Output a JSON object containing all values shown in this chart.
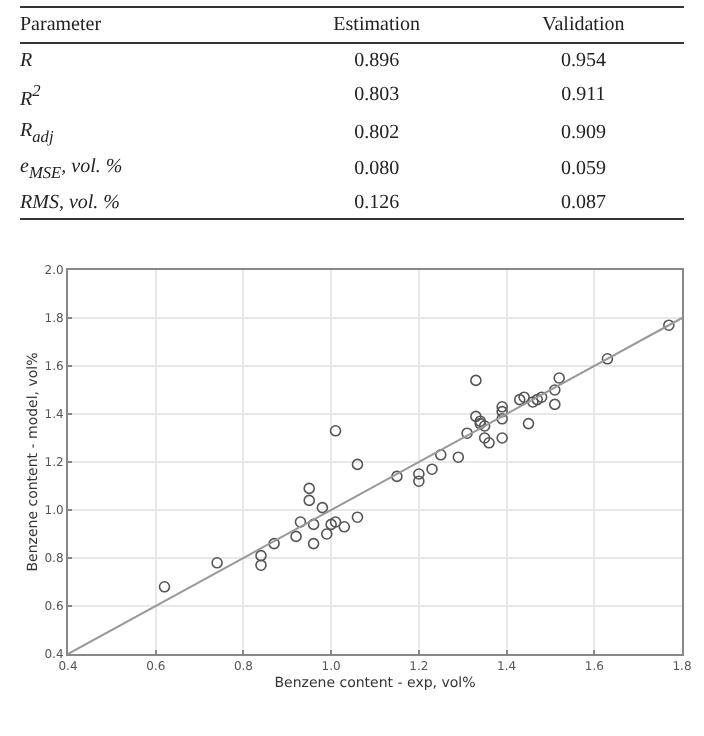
{
  "chart_data": [
    {
      "type": "other",
      "xlabel": "Parameter",
      "categories": [
        "R",
        "R$^{2}$",
        "R$_{adj}$",
        "e$_{MSE}$, vol. %",
        "RMS, vol. %"
      ],
      "series": [
        {
          "name": "Estimation",
          "values": [
            0.896,
            0.803,
            0.802,
            0.08,
            0.126
          ],
          "value_labels": [
            "0.896",
            "0.803",
            "0.802",
            "0.080",
            "0.126"
          ]
        },
        {
          "name": "Validation",
          "values": [
            0.954,
            0.911,
            0.909,
            0.059,
            0.087
          ],
          "value_labels": [
            "0.954",
            "0.911",
            "0.909",
            "0.059",
            "0.087"
          ]
        }
      ]
    },
    {
      "type": "scatter",
      "xlabel": "Benzene content - exp, vol%",
      "ylabel": "Benzene content - model, vol%",
      "xlim": [
        0.4,
        1.8
      ],
      "ylim": [
        0.4,
        2.0
      ],
      "xticks": [
        0.4,
        0.6,
        0.8,
        {
          "value": 1,
          "label": "1.0"
        },
        1.2,
        1.4,
        1.6,
        1.8
      ],
      "yticks": [
        0.4,
        0.6,
        0.8,
        {
          "value": 1,
          "label": "1.0"
        },
        1.2,
        1.4,
        1.6,
        1.8,
        {
          "value": 2,
          "label": "2.0"
        }
      ],
      "grid": true,
      "series": [
        {
          "type": "scatter",
          "marker": "circle",
          "color": "#555555",
          "x": [
            0.62,
            0.74,
            0.84,
            0.84,
            0.87,
            0.92,
            0.93,
            0.95,
            0.95,
            0.96,
            0.96,
            0.98,
            0.99,
            1.0,
            1.01,
            1.01,
            1.03,
            1.06,
            1.06,
            1.15,
            1.2,
            1.2,
            1.23,
            1.25,
            1.29,
            1.31,
            1.33,
            1.33,
            1.34,
            1.34,
            1.35,
            1.35,
            1.36,
            1.39,
            1.39,
            1.39,
            1.39,
            1.43,
            1.44,
            1.45,
            1.46,
            1.47,
            1.48,
            1.51,
            1.52,
            1.51,
            1.63,
            1.77
          ],
          "values": [
            0.68,
            0.78,
            0.81,
            0.77,
            0.86,
            0.89,
            0.95,
            1.09,
            1.04,
            0.94,
            0.86,
            1.01,
            0.9,
            0.94,
            0.95,
            1.33,
            0.93,
            0.97,
            1.19,
            1.14,
            1.15,
            1.12,
            1.17,
            1.23,
            1.22,
            1.32,
            1.54,
            1.39,
            1.37,
            1.36,
            1.35,
            1.3,
            1.28,
            1.43,
            1.41,
            1.38,
            1.3,
            1.46,
            1.47,
            1.36,
            1.45,
            1.46,
            1.47,
            1.44,
            1.55,
            1.5,
            1.63,
            1.77
          ]
        },
        {
          "type": "line",
          "marker": "none",
          "color": "#999999",
          "x": [
            0.4,
            1.8
          ],
          "values": [
            0.4,
            1.8
          ]
        }
      ]
    }
  ]
}
